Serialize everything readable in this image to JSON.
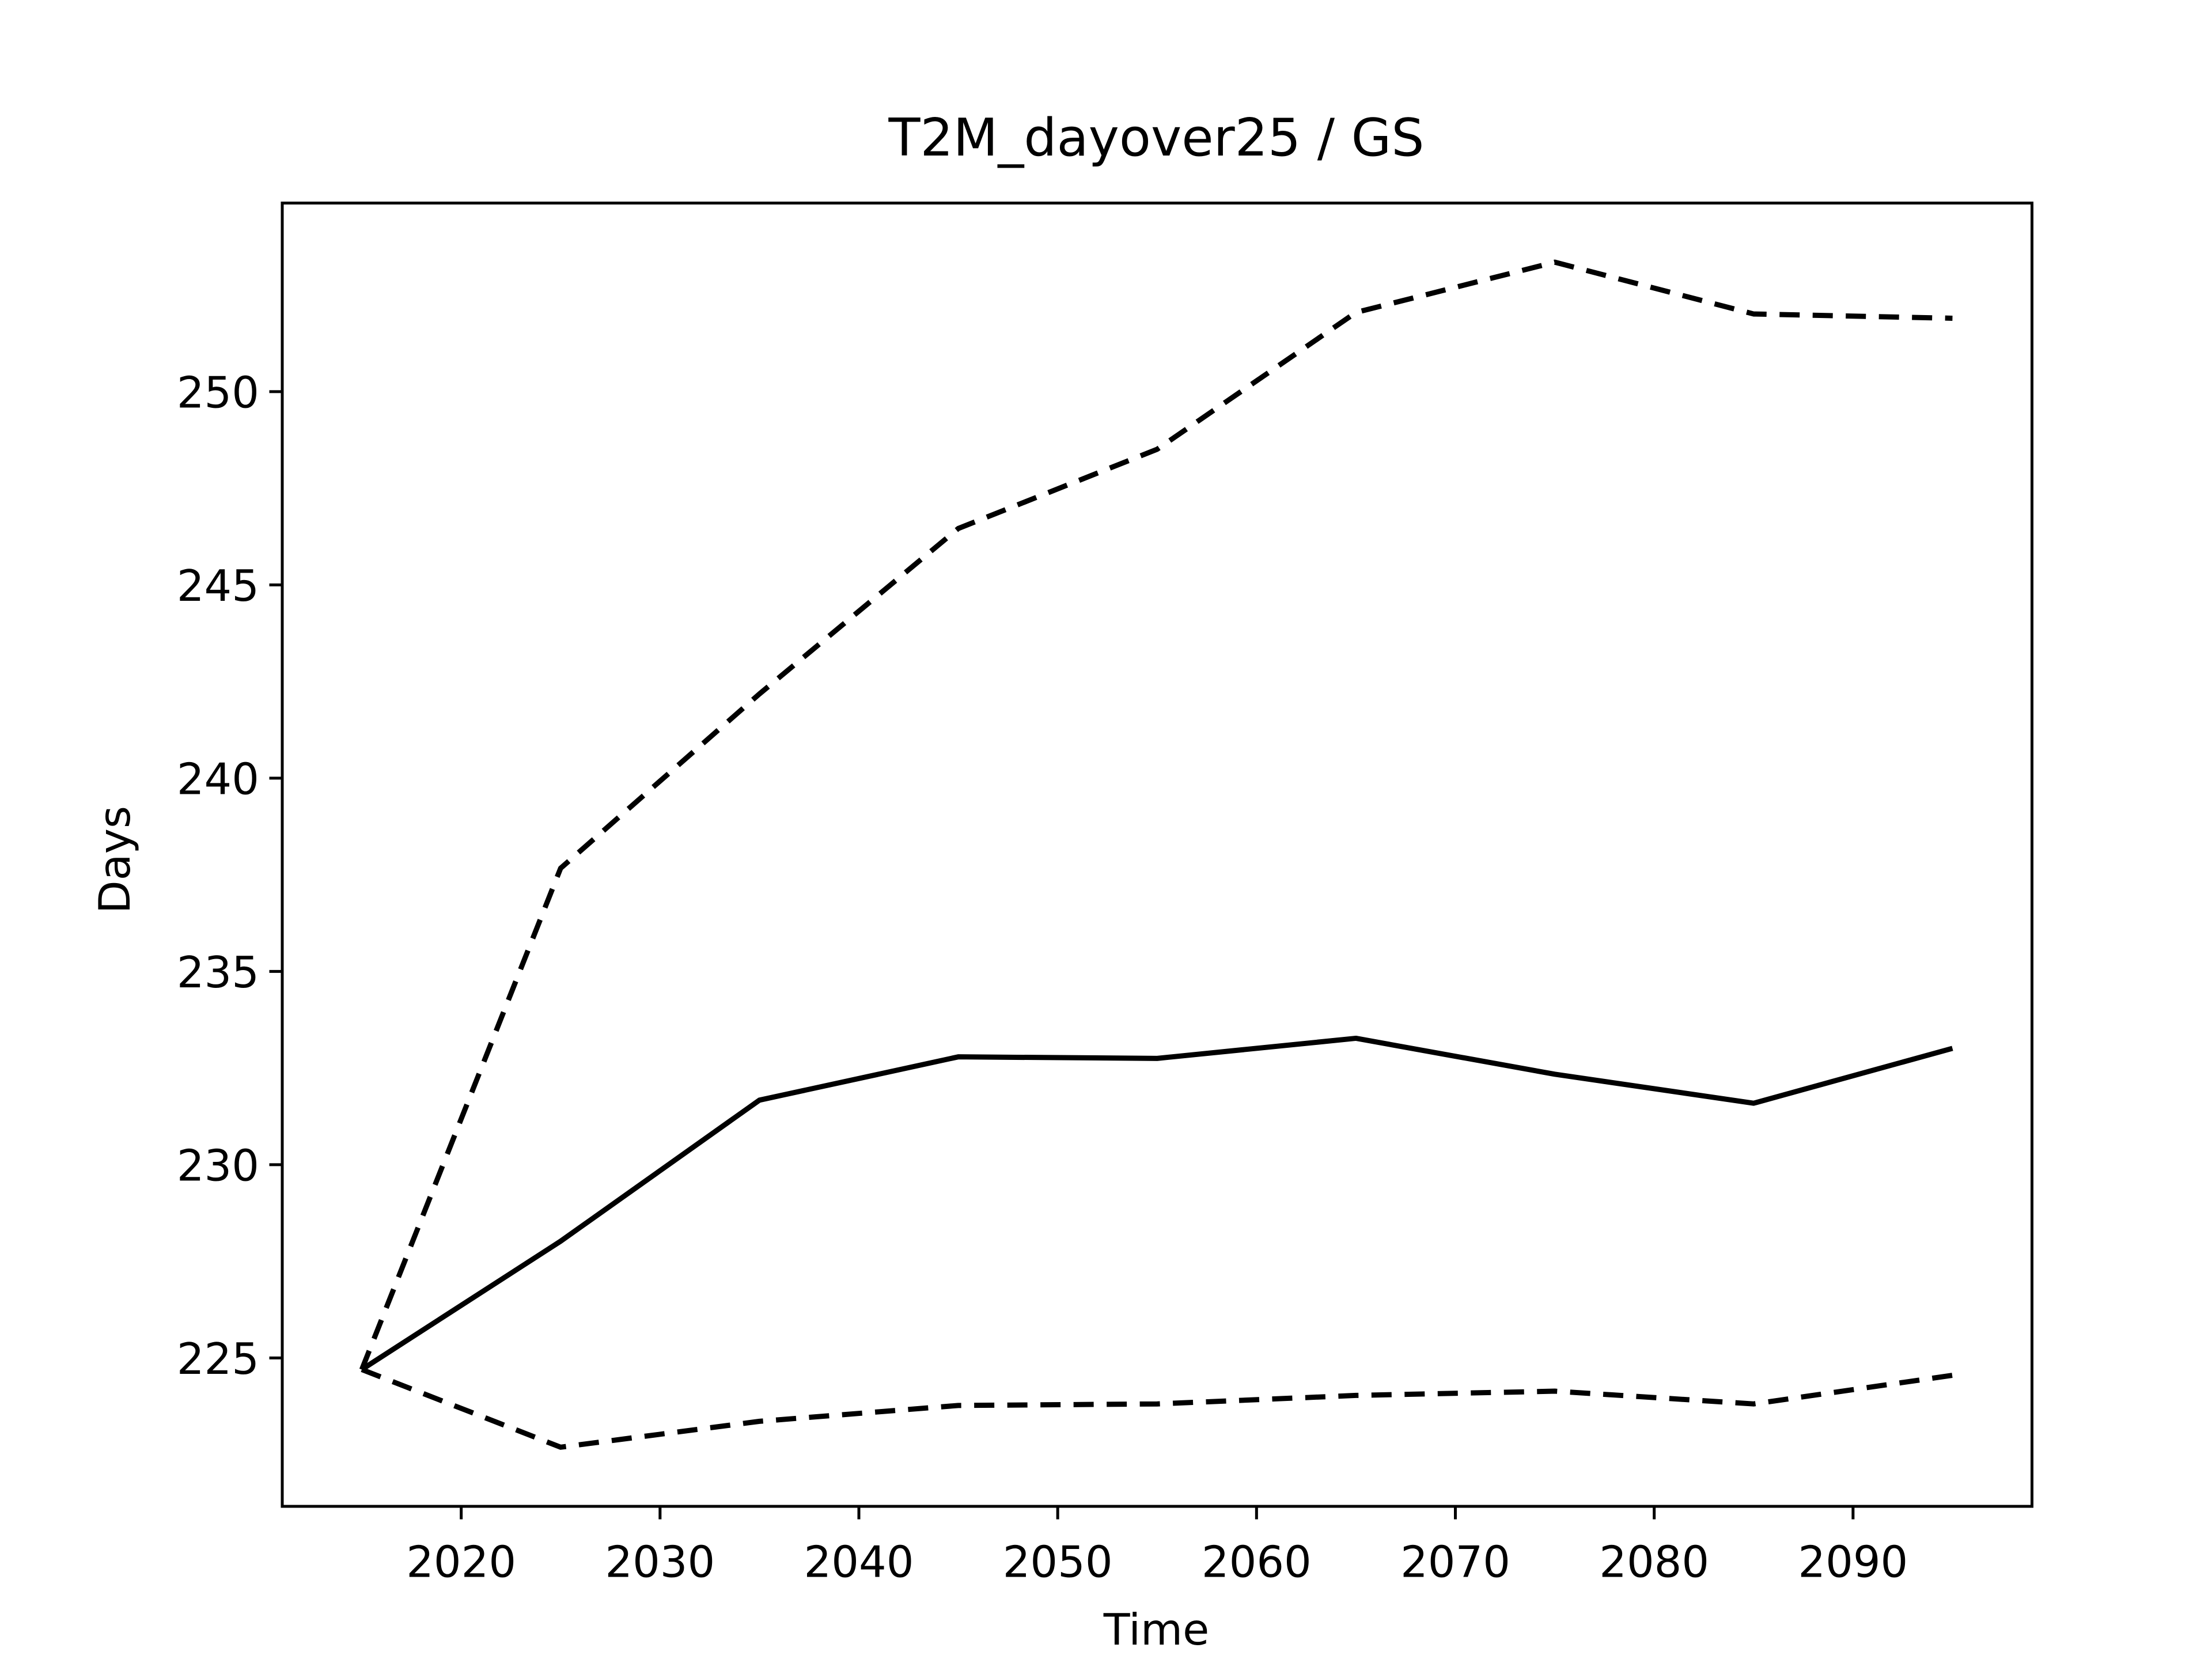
{
  "chart_data": {
    "type": "line",
    "title": "T2M_dayover25 / GS",
    "x_label": "Time",
    "y_label": "Days",
    "x": [
      2015,
      2025,
      2035,
      2045,
      2055,
      2065,
      2075,
      2085,
      2095
    ],
    "series": [
      {
        "color": "#000000",
        "dashed": false,
        "values": [
          224.7,
          228.02,
          231.67,
          232.79,
          232.75,
          233.27,
          232.34,
          231.59,
          233.01
        ]
      },
      {
        "color": "#000000",
        "dashed": true,
        "values": [
          224.7,
          237.67,
          242.18,
          246.46,
          248.51,
          252.05,
          253.35,
          252.01,
          251.9
        ]
      },
      {
        "color": "#000000",
        "dashed": true,
        "values": [
          224.7,
          222.69,
          223.36,
          223.77,
          223.81,
          224.03,
          224.14,
          223.81,
          224.55
        ]
      }
    ],
    "xlim": [
      2011,
      2099
    ],
    "xticks": [
      2020,
      2030,
      2040,
      2050,
      2060,
      2070,
      2080,
      2090
    ],
    "ylim": [
      221.16,
      254.88
    ],
    "yticks": [
      225,
      230,
      235,
      240,
      245,
      250
    ],
    "grid": false
  }
}
